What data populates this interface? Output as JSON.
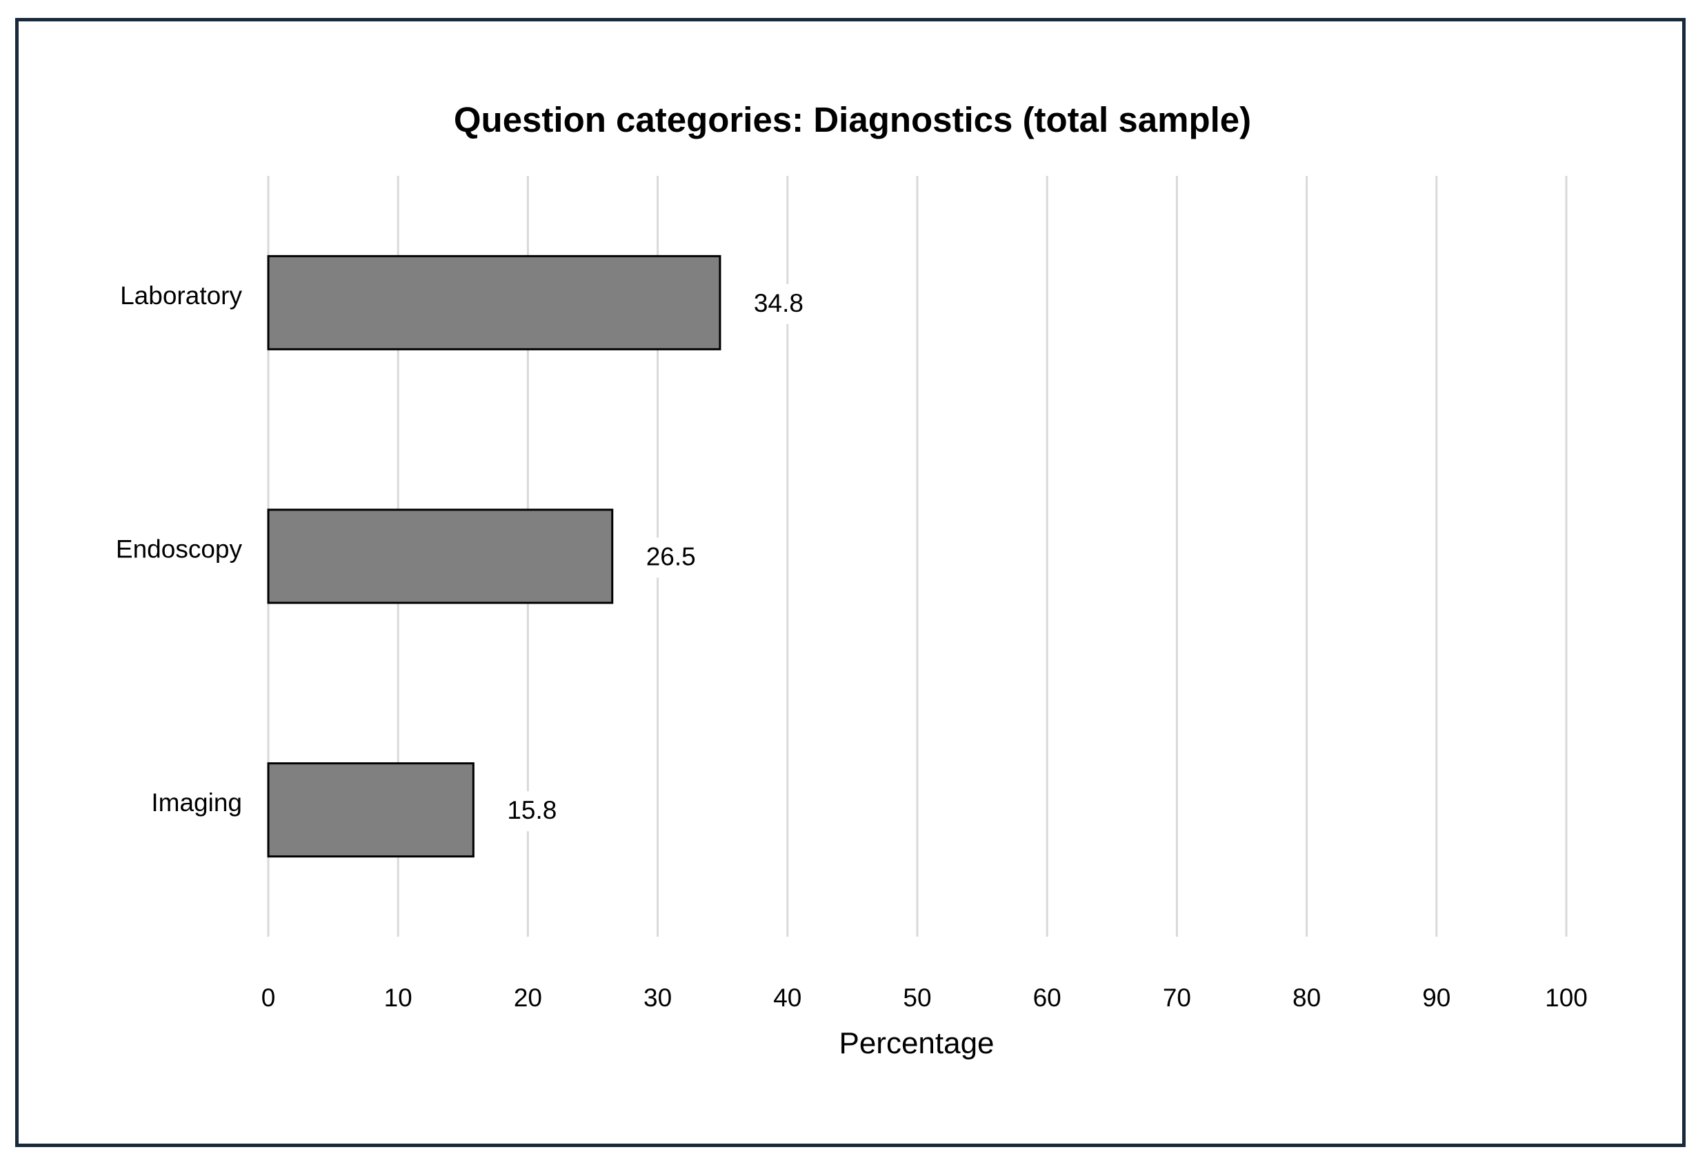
{
  "chart_data": {
    "type": "bar",
    "orientation": "horizontal",
    "title": "Question categories: Diagnostics (total sample)",
    "xlabel": "Percentage",
    "ylabel": "",
    "categories": [
      "Laboratory",
      "Endoscopy",
      "Imaging"
    ],
    "values": [
      34.8,
      26.5,
      15.8
    ],
    "data_labels": [
      "34.8",
      "26.5",
      "15.8"
    ],
    "xlim": [
      0,
      100
    ],
    "x_ticks": [
      0,
      10,
      20,
      30,
      40,
      50,
      60,
      70,
      80,
      90,
      100
    ],
    "x_tick_labels": [
      "0",
      "10",
      "20",
      "30",
      "40",
      "50",
      "60",
      "70",
      "80",
      "90",
      "100"
    ],
    "grid": "vertical",
    "legend": "none",
    "colors": {
      "bar_fill": "#808080",
      "bar_stroke": "#000000",
      "grid": "#d9d9d9",
      "frame": "#17293b"
    }
  }
}
